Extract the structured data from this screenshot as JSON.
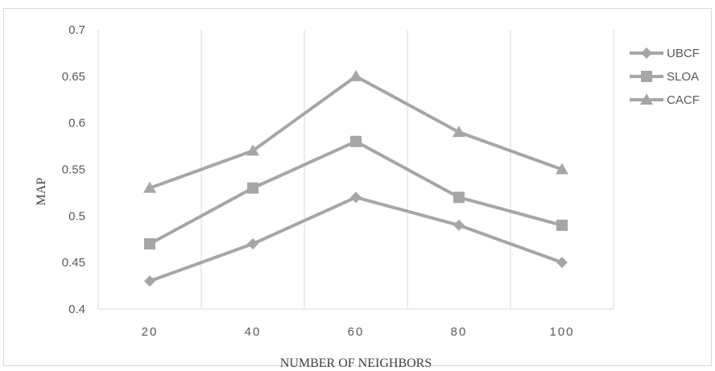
{
  "chart_data": {
    "type": "line",
    "title": "",
    "xlabel": "NUMBER OF NEIGHBORS",
    "ylabel": "MAP",
    "categories": [
      "20",
      "40",
      "60",
      "80",
      "100"
    ],
    "ylim": [
      0.4,
      0.7
    ],
    "ytick_labels": [
      "0.4",
      "0.45",
      "0.5",
      "0.55",
      "0.6",
      "0.65",
      "0.7"
    ],
    "grid": "vertical",
    "legend_position": "right",
    "series_color": "#a6a6a6",
    "series": [
      {
        "name": "UBCF",
        "marker": "diamond",
        "values": [
          0.43,
          0.47,
          0.52,
          0.49,
          0.45
        ]
      },
      {
        "name": "SLOA",
        "marker": "square",
        "values": [
          0.47,
          0.53,
          0.58,
          0.52,
          0.49
        ]
      },
      {
        "name": "CACF",
        "marker": "triangle",
        "values": [
          0.53,
          0.57,
          0.65,
          0.59,
          0.55
        ]
      }
    ]
  }
}
